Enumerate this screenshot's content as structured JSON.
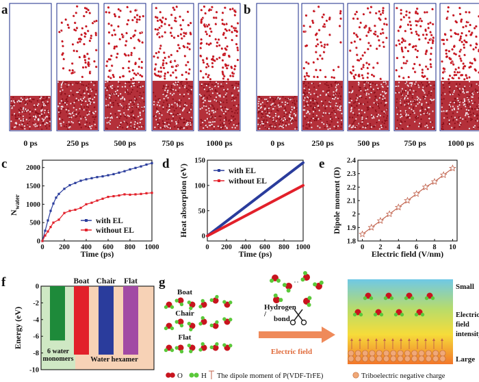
{
  "panel_letters": {
    "a": "a",
    "b": "b",
    "c": "c",
    "d": "d",
    "e": "e",
    "f": "f",
    "g": "g"
  },
  "colors": {
    "oxygen": "#c8141e",
    "hydrogen": "#e6e6ee",
    "box": "#1a2a88",
    "blue": "#2a3c9c",
    "red": "#e2202a",
    "dipole": "#c0604a",
    "green_fill": "#cfe8c4",
    "peach_fill": "#f7d2b6"
  },
  "md_snapshots": {
    "a": {
      "labels": [
        "0 ps",
        "250 ps",
        "500 ps",
        "750 ps",
        "1000 ps"
      ],
      "vapor_molecules": [
        0,
        75,
        90,
        110,
        130
      ]
    },
    "b": {
      "labels": [
        "0 ps",
        "250 ps",
        "500 ps",
        "750 ps",
        "1000 ps"
      ],
      "vapor_molecules": [
        0,
        60,
        85,
        105,
        120
      ]
    }
  },
  "panel_g": {
    "isomers": [
      "Boat",
      "Chair",
      "Flat"
    ],
    "hbond_label_1": "Hydrogen",
    "hbond_label_2": "bond",
    "hbond_slash": "/",
    "arrow_label": "Electric field",
    "scale": {
      "small": "Small",
      "mid_1": "Electric",
      "mid_2": "field",
      "mid_3": "intensity",
      "large": "Large"
    },
    "legend": {
      "o": "O",
      "h": "H",
      "dipole": "The dipole moment of P(VDF-TrFE)",
      "charge": "Triboelectric negative charge"
    }
  },
  "chart_data": [
    {
      "id": "c",
      "type": "line",
      "title": "",
      "xlabel": "Time (ps)",
      "ylabel_main": "N",
      "ylabel_sub": "water",
      "xlim": [
        0,
        1000
      ],
      "ylim": [
        0,
        2200
      ],
      "xticks": [
        0,
        200,
        400,
        600,
        800,
        1000
      ],
      "yticks": [
        0,
        500,
        1000,
        1500,
        2000
      ],
      "legend": "bottom-right",
      "series": [
        {
          "name": "with EL",
          "color": "#2a3c9c",
          "marker": "square",
          "x": [
            0,
            25,
            50,
            75,
            100,
            125,
            150,
            200,
            250,
            300,
            350,
            400,
            450,
            500,
            550,
            600,
            650,
            700,
            750,
            800,
            850,
            900,
            950,
            1000
          ],
          "y": [
            0,
            280,
            560,
            820,
            1020,
            1180,
            1280,
            1420,
            1520,
            1580,
            1640,
            1680,
            1710,
            1740,
            1760,
            1790,
            1820,
            1860,
            1900,
            1950,
            1990,
            2030,
            2080,
            2120
          ]
        },
        {
          "name": "without EL",
          "color": "#e2202a",
          "marker": "square",
          "x": [
            0,
            25,
            50,
            75,
            100,
            150,
            200,
            250,
            300,
            350,
            400,
            450,
            500,
            550,
            600,
            650,
            700,
            750,
            800,
            850,
            900,
            950,
            1000
          ],
          "y": [
            0,
            150,
            260,
            380,
            500,
            580,
            760,
            820,
            850,
            900,
            1000,
            1040,
            1100,
            1150,
            1200,
            1220,
            1240,
            1270,
            1260,
            1270,
            1280,
            1300,
            1310
          ]
        }
      ]
    },
    {
      "id": "d",
      "type": "line",
      "title": "",
      "xlabel": "Time (ps)",
      "ylabel": "Heat absorption (eV)",
      "xlim": [
        0,
        1000
      ],
      "ylim": [
        -10,
        150
      ],
      "xticks": [
        0,
        200,
        400,
        600,
        800,
        1000
      ],
      "yticks": [
        0,
        50,
        100,
        150
      ],
      "legend": "top-left",
      "series": [
        {
          "name": "with EL",
          "color": "#2a3c9c",
          "x": [
            0,
            1000
          ],
          "y": [
            0,
            145
          ]
        },
        {
          "name": "without EL",
          "color": "#e2202a",
          "x": [
            0,
            1000
          ],
          "y": [
            0,
            100
          ]
        }
      ]
    },
    {
      "id": "e",
      "type": "line",
      "title": "",
      "xlabel": "Electric field (V/nm)",
      "ylabel": "Dipole moment (D)",
      "xlim": [
        -0.5,
        10.5
      ],
      "ylim": [
        1.8,
        2.4
      ],
      "xticks": [
        0,
        2,
        4,
        6,
        8,
        10
      ],
      "yticks": [
        1.8,
        1.9,
        2.0,
        2.1,
        2.2,
        2.3,
        2.4
      ],
      "series": [
        {
          "name": "dipole",
          "color": "#c0604a",
          "marker": "star",
          "x": [
            0,
            1,
            2,
            3,
            4,
            5,
            6,
            7,
            8,
            9,
            10
          ],
          "y": [
            1.85,
            1.9,
            1.95,
            2.0,
            2.05,
            2.1,
            2.15,
            2.2,
            2.24,
            2.29,
            2.34
          ]
        }
      ]
    },
    {
      "id": "f",
      "type": "bar",
      "title": "",
      "xlabel": "",
      "ylabel": "Energy (eV)",
      "ylim": [
        -10,
        0
      ],
      "yticks": [
        0,
        -2,
        -4,
        -6,
        -8,
        -10
      ],
      "categories": [
        "6 water monomers",
        "Boat",
        "Chair",
        "Flat"
      ],
      "values": [
        -6.5,
        -8.2,
        -8.2,
        -8.2
      ],
      "bar_colors": [
        "#1e8a3a",
        "#e2202a",
        "#2a3c9c",
        "#a24aa4"
      ],
      "group_labels": {
        "left_1": "6 water",
        "left_2": "monomers",
        "right": "Water hexamer"
      }
    }
  ]
}
